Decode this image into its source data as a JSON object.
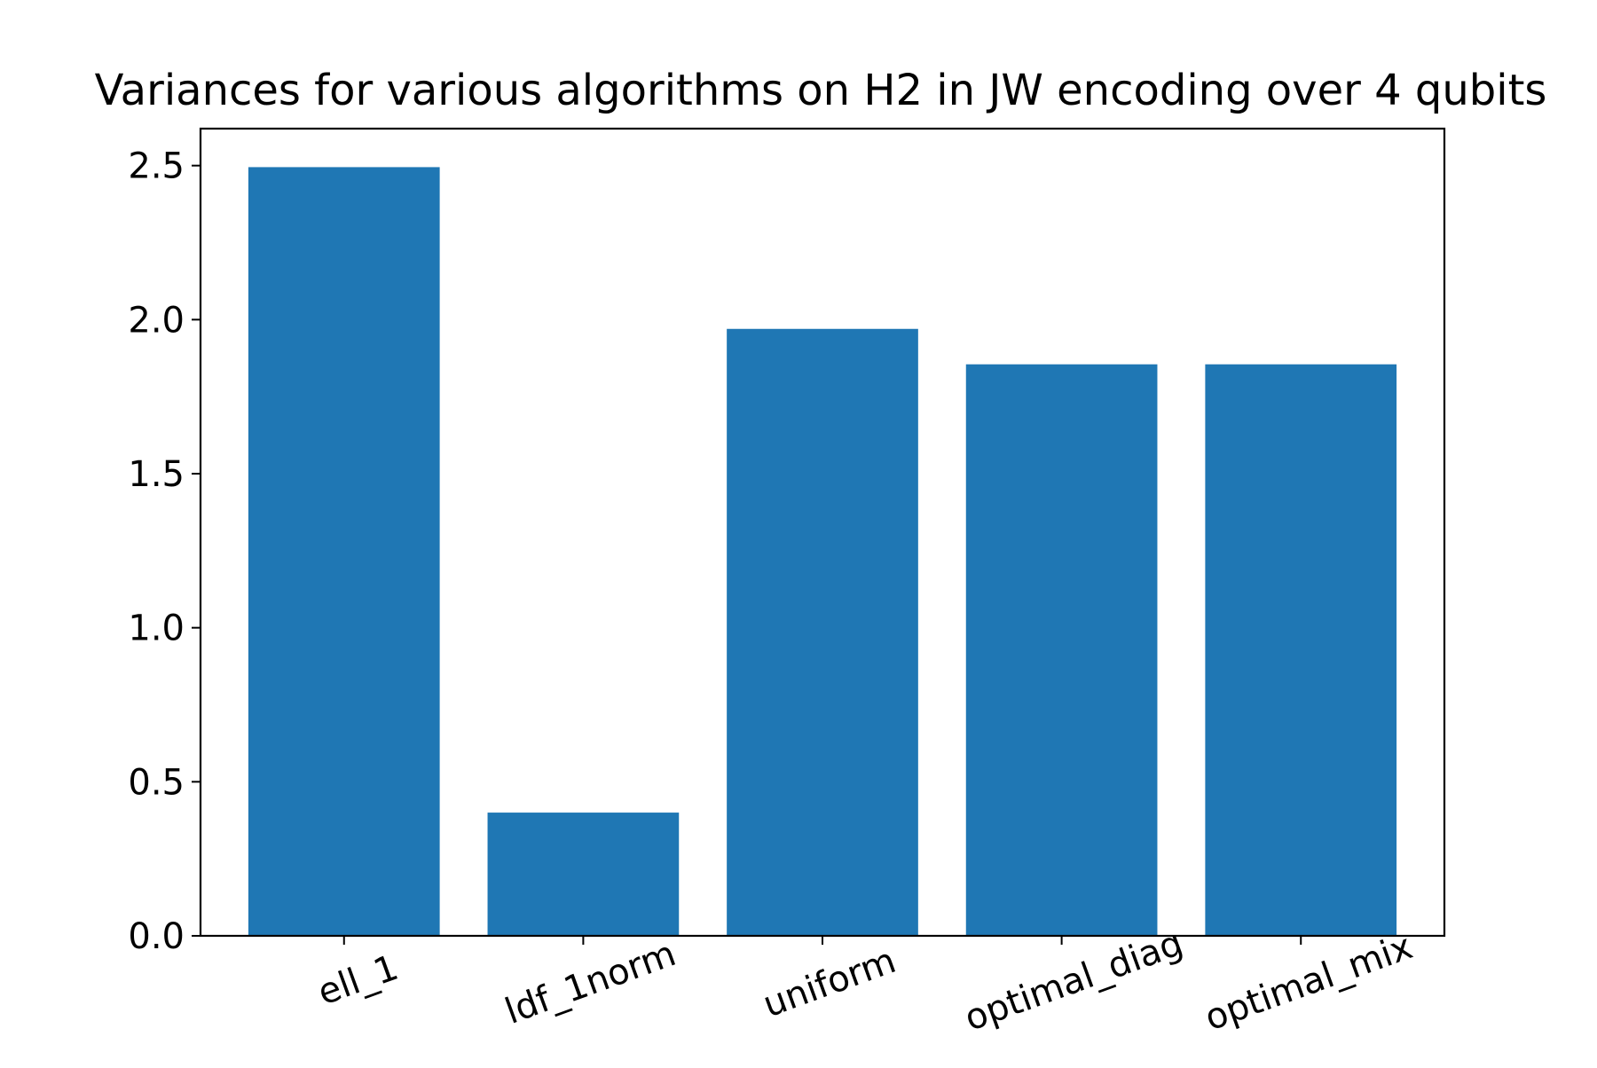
{
  "chart_data": {
    "type": "bar",
    "title": "Variances for various algorithms on H2 in JW encoding over 4 qubits",
    "xlabel": "",
    "ylabel": "",
    "categories": [
      "ell_1",
      "ldf_1norm",
      "uniform",
      "optimal_diag",
      "optimal_mix"
    ],
    "values": [
      2.495,
      0.4,
      1.97,
      1.855,
      1.855
    ],
    "ylim": [
      0,
      2.62
    ],
    "yticks": [
      "0.0",
      "0.5",
      "1.0",
      "1.5",
      "2.0",
      "2.5"
    ],
    "ytick_values": [
      0,
      0.5,
      1.0,
      1.5,
      2.0,
      2.5
    ],
    "bar_color": "#1f77b4",
    "grid": false,
    "legend": false
  }
}
